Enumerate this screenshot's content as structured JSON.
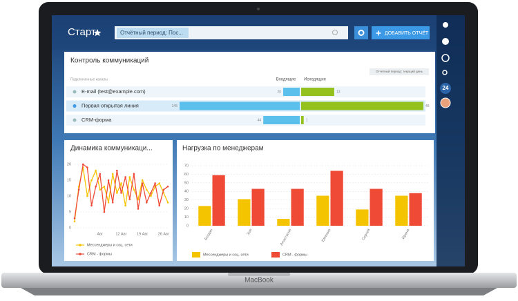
{
  "laptop_brand": "MacBook",
  "header": {
    "title": "Старт",
    "filter": "Отчётный период: Пос...",
    "add_button": "ДОБАВИТЬ ОТЧЁТ"
  },
  "sidebar": {
    "badge": "24"
  },
  "communications": {
    "title": "Контроль коммуникаций",
    "period_button": "Отчетный период: текущий день",
    "channels_label": "Подключенные каналы",
    "incoming_label": "Входящие",
    "outgoing_label": "Исходящие",
    "rows": [
      {
        "name": "E-mail (test@example.com)",
        "incoming": 20,
        "outgoing": 13
      },
      {
        "name": "Первая открытая линия",
        "incoming": 145,
        "outgoing": 48
      },
      {
        "name": "CRM-форма",
        "incoming": 44,
        "outgoing": 1
      }
    ]
  },
  "chart_data": [
    {
      "type": "line",
      "title": "Динамика коммуникаци...",
      "categories": [
        null,
        null,
        null,
        null,
        null,
        null,
        "Авг",
        null,
        null,
        null,
        null,
        "12 Авг",
        null,
        null,
        null,
        null,
        "19 Авг",
        null,
        null,
        null,
        null,
        "26 Авг",
        null
      ],
      "series": [
        {
          "name": "Мессенджеры и соц. сети",
          "color": "#f5c400",
          "values": [
            2,
            13,
            19,
            10,
            15,
            18,
            12,
            13,
            8,
            17,
            11,
            14,
            7,
            16,
            12,
            9,
            15,
            12,
            10,
            13,
            14,
            11,
            8
          ]
        },
        {
          "name": "CRM - формы",
          "color": "#ef4a35",
          "values": [
            3,
            12,
            20,
            19,
            7,
            13,
            17,
            5,
            15,
            8,
            18,
            11,
            16,
            9,
            17,
            6,
            14,
            8,
            11,
            14,
            7,
            12,
            13
          ]
        }
      ],
      "ylim": [
        0,
        20
      ],
      "yticks": [
        0,
        5,
        10,
        15,
        20
      ],
      "grid": true
    },
    {
      "type": "bar",
      "title": "Нагрузка по менеджерам",
      "categories": [
        "Богдан",
        "Зоя",
        "Анастасия",
        "Евгения",
        "Сергей",
        "Ирина"
      ],
      "series": [
        {
          "name": "Мессенджеры и соц. сети",
          "color": "#f5c400",
          "values": [
            23,
            31,
            8,
            35,
            19,
            35
          ]
        },
        {
          "name": "CRM - формы",
          "color": "#ef4a35",
          "values": [
            59,
            43,
            43,
            64,
            43,
            38
          ]
        }
      ],
      "ylim": [
        0,
        70
      ],
      "yticks": [
        0,
        10,
        20,
        30,
        40,
        50,
        60,
        70
      ],
      "grid": true
    }
  ]
}
